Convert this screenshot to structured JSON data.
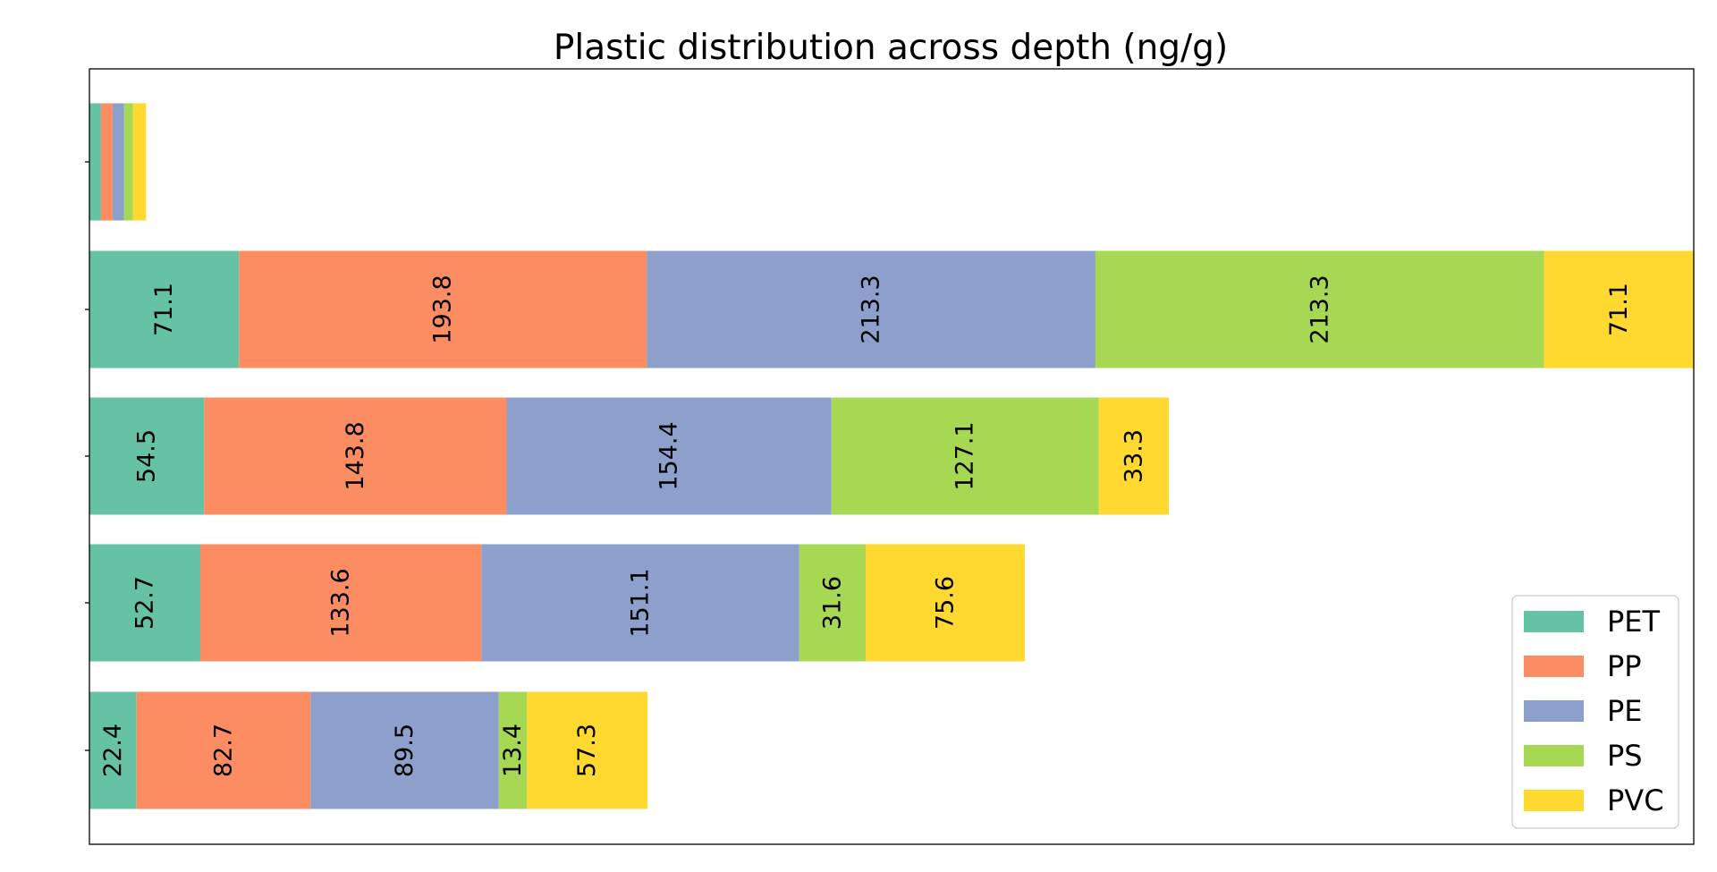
{
  "chart_data": {
    "type": "bar",
    "orientation": "horizontal",
    "stacked": true,
    "title": "Plastic distribution across depth (ng/g)",
    "xlabel": "",
    "ylabel": "",
    "xlim": [
      0,
      762.6
    ],
    "categories": [
      "",
      "",
      "",
      "",
      ""
    ],
    "series": [
      {
        "name": "PET",
        "color": "#66c2a5",
        "values": [
          5.5,
          71.1,
          54.5,
          52.7,
          22.4
        ],
        "labels": [
          "",
          "71.1",
          "54.5",
          "52.7",
          "22.4"
        ]
      },
      {
        "name": "PP",
        "color": "#fc8d62",
        "values": [
          5.5,
          193.8,
          143.8,
          133.6,
          82.7
        ],
        "labels": [
          "",
          "193.8",
          "143.8",
          "133.6",
          "82.7"
        ]
      },
      {
        "name": "PE",
        "color": "#8da0cb",
        "values": [
          5.5,
          213.3,
          154.4,
          151.1,
          89.5
        ],
        "labels": [
          "",
          "213.3",
          "154.4",
          "151.1",
          "89.5"
        ]
      },
      {
        "name": "PS",
        "color": "#a6d854",
        "values": [
          4.2,
          213.3,
          127.1,
          31.6,
          13.4
        ],
        "labels": [
          "",
          "213.3",
          "127.1",
          "31.6",
          "13.4"
        ]
      },
      {
        "name": "PVC",
        "color": "#ffd92f",
        "values": [
          6.2,
          71.1,
          33.3,
          75.6,
          57.3
        ],
        "labels": [
          "",
          "71.1",
          "33.3",
          "75.6",
          "57.3"
        ]
      }
    ],
    "grid": false,
    "legend_position": "lower-right"
  }
}
